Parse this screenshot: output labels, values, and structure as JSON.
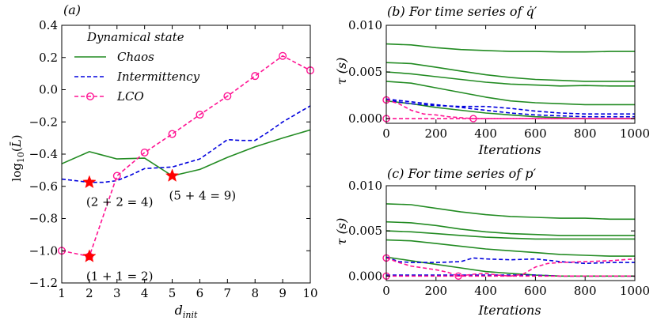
{
  "colors": {
    "chaos": "#228b22",
    "intermittency": "#0000dd",
    "lco": "#ff1493",
    "star": "#ff0000",
    "axis": "#000000"
  },
  "chart_data": [
    {
      "id": "a",
      "type": "line",
      "title": "(a)",
      "xlabel": "d_init",
      "xlabel_main": "d",
      "xlabel_sub": "init",
      "ylabel": "log10(L̄)",
      "xlim": [
        1,
        10
      ],
      "ylim": [
        -1.2,
        0.4
      ],
      "xticks": [
        1,
        2,
        3,
        4,
        5,
        6,
        7,
        8,
        9,
        10
      ],
      "yticks": [
        -1.2,
        -1.0,
        -0.8,
        -0.6,
        -0.4,
        -0.2,
        0.0,
        0.2,
        0.4
      ],
      "ytick_labels": [
        "−1.2",
        "−1.0",
        "−0.8",
        "−0.6",
        "−0.4",
        "−0.2",
        "0.0",
        "0.2",
        "0.4"
      ],
      "legend": {
        "title": "Dynamical state",
        "position": "top-left"
      },
      "series": [
        {
          "name": "Chaos",
          "key": "chaos",
          "style": "solid",
          "x": [
            1,
            2,
            3,
            4,
            5,
            6,
            7,
            8,
            9,
            10
          ],
          "y": [
            -0.46,
            -0.385,
            -0.43,
            -0.425,
            -0.535,
            -0.495,
            -0.42,
            -0.355,
            -0.3,
            -0.25
          ]
        },
        {
          "name": "Intermittency",
          "key": "intermittency",
          "style": "dashed",
          "x": [
            1,
            1.5,
            2,
            2.5,
            3,
            3.5,
            4,
            4.5,
            5,
            5.5,
            6,
            6.5,
            7,
            7.5,
            8,
            8.5,
            9,
            9.5,
            10
          ],
          "y": [
            -0.555,
            -0.565,
            -0.575,
            -0.575,
            -0.565,
            -0.53,
            -0.49,
            -0.485,
            -0.48,
            -0.455,
            -0.43,
            -0.37,
            -0.31,
            -0.315,
            -0.315,
            -0.26,
            -0.2,
            -0.15,
            -0.1
          ]
        },
        {
          "name": "LCO",
          "key": "lco",
          "style": "dashed-circle",
          "x": [
            1,
            2,
            3,
            4,
            5,
            6,
            7,
            8,
            9,
            10
          ],
          "y": [
            -1.0,
            -1.035,
            -0.535,
            -0.39,
            -0.275,
            -0.155,
            -0.04,
            0.085,
            0.21,
            0.12
          ]
        }
      ],
      "stars": [
        {
          "x": 2,
          "y": -1.035,
          "label": "(1 + 1 = 2)"
        },
        {
          "x": 2,
          "y": -0.575,
          "label": "(2 + 2 = 4)"
        },
        {
          "x": 5,
          "y": -0.535,
          "label": "(5 + 4 = 9)"
        }
      ]
    },
    {
      "id": "b",
      "type": "line",
      "title": "(b) For time series of q̇′",
      "xlabel": "Iterations",
      "ylabel": "τ (s)",
      "xlim": [
        0,
        1000
      ],
      "ylim": [
        -0.0005,
        0.01
      ],
      "xticks": [
        0,
        200,
        400,
        600,
        800,
        1000
      ],
      "yticks": [
        0.0,
        0.005,
        0.01
      ],
      "ytick_labels": [
        "0.000",
        "0.005",
        "0.010"
      ],
      "series": [
        {
          "name": "Chaos",
          "key": "chaos",
          "style": "solid",
          "x": [
            0,
            100,
            200,
            300,
            400,
            500,
            600,
            700,
            800,
            900,
            1000
          ],
          "y": [
            0.008,
            0.0079,
            0.0076,
            0.0074,
            0.0073,
            0.0072,
            0.0072,
            0.00715,
            0.00715,
            0.0072,
            0.0072
          ]
        },
        {
          "name": "Chaos",
          "key": "chaos",
          "style": "solid",
          "x": [
            0,
            100,
            200,
            300,
            400,
            500,
            600,
            700,
            800,
            900,
            1000
          ],
          "y": [
            0.006,
            0.0059,
            0.0055,
            0.0051,
            0.0047,
            0.0044,
            0.0042,
            0.0041,
            0.004,
            0.004,
            0.004
          ]
        },
        {
          "name": "Chaos",
          "key": "chaos",
          "style": "solid",
          "x": [
            0,
            100,
            200,
            300,
            400,
            500,
            600,
            700,
            800,
            900,
            1000
          ],
          "y": [
            0.005,
            0.0048,
            0.0045,
            0.0042,
            0.0039,
            0.0037,
            0.0036,
            0.0035,
            0.00355,
            0.0035,
            0.0035
          ]
        },
        {
          "name": "Chaos",
          "key": "chaos",
          "style": "solid",
          "x": [
            0,
            100,
            200,
            300,
            400,
            500,
            600,
            700,
            800,
            900,
            1000
          ],
          "y": [
            0.004,
            0.0038,
            0.0033,
            0.0028,
            0.0023,
            0.0019,
            0.0017,
            0.0016,
            0.0015,
            0.0015,
            0.0015
          ]
        },
        {
          "name": "Chaos",
          "key": "chaos",
          "style": "solid",
          "x": [
            0,
            100,
            200,
            300,
            400,
            500,
            600,
            700,
            800,
            900,
            1000
          ],
          "y": [
            0.0019,
            0.0016,
            0.0012,
            0.0009,
            0.0006,
            0.0004,
            0.0002,
            0.0001,
            0.0,
            0.0,
            0.0
          ]
        },
        {
          "name": "Intermittency",
          "key": "intermittency",
          "style": "dashed",
          "x": [
            0,
            100,
            200,
            300,
            400,
            500,
            600,
            700,
            800,
            900,
            1000
          ],
          "y": [
            0.0021,
            0.0018,
            0.0015,
            0.0012,
            0.0009,
            0.0006,
            0.0004,
            0.0003,
            0.0002,
            0.0002,
            0.0002
          ]
        },
        {
          "name": "Intermittency",
          "key": "intermittency",
          "style": "dashed",
          "x": [
            0,
            100,
            200,
            300,
            400,
            500,
            600,
            700,
            800,
            900,
            1000
          ],
          "y": [
            0.002,
            0.0016,
            0.0014,
            0.0013,
            0.0013,
            0.0011,
            0.0008,
            0.0006,
            0.0005,
            0.0005,
            0.0005
          ]
        },
        {
          "name": "LCO",
          "key": "lco",
          "style": "dashed",
          "x": [
            0,
            50,
            100,
            150,
            200,
            250,
            300,
            350,
            400,
            500,
            600,
            800,
            1000
          ],
          "y": [
            0.002,
            0.0016,
            0.0009,
            0.0005,
            0.0004,
            0.0002,
            0.0001,
            0.0,
            0.0,
            0.0,
            0.0,
            0.0,
            0.0
          ]
        },
        {
          "name": "LCO",
          "key": "lco",
          "style": "dashed",
          "x": [
            0,
            200,
            400,
            600,
            800,
            1000
          ],
          "y": [
            0.0,
            0.0,
            0.0,
            0.0,
            0.0,
            0.0
          ]
        }
      ],
      "markers": [
        {
          "x": 0,
          "y": 0.002
        },
        {
          "x": 0,
          "y": 0.0
        },
        {
          "x": 350,
          "y": 0.0
        }
      ]
    },
    {
      "id": "c",
      "type": "line",
      "title": "(c) For time series of p′",
      "xlabel": "Iterations",
      "ylabel": "τ (s)",
      "xlim": [
        0,
        1000
      ],
      "ylim": [
        -0.0005,
        0.01
      ],
      "xticks": [
        0,
        200,
        400,
        600,
        800,
        1000
      ],
      "yticks": [
        0.0,
        0.005,
        0.01
      ],
      "ytick_labels": [
        "0.000",
        "0.005",
        "0.010"
      ],
      "series": [
        {
          "name": "Chaos",
          "key": "chaos",
          "style": "solid",
          "x": [
            0,
            100,
            200,
            300,
            400,
            500,
            600,
            700,
            800,
            900,
            1000
          ],
          "y": [
            0.008,
            0.0079,
            0.0075,
            0.0071,
            0.0068,
            0.0066,
            0.0065,
            0.0064,
            0.0064,
            0.0063,
            0.0063
          ]
        },
        {
          "name": "Chaos",
          "key": "chaos",
          "style": "solid",
          "x": [
            0,
            100,
            200,
            300,
            400,
            500,
            600,
            700,
            800,
            900,
            1000
          ],
          "y": [
            0.006,
            0.0059,
            0.0056,
            0.0052,
            0.0049,
            0.0047,
            0.0046,
            0.0045,
            0.0045,
            0.0045,
            0.0045
          ]
        },
        {
          "name": "Chaos",
          "key": "chaos",
          "style": "solid",
          "x": [
            0,
            100,
            200,
            300,
            400,
            500,
            600,
            700,
            800,
            900,
            1000
          ],
          "y": [
            0.005,
            0.0049,
            0.0047,
            0.0045,
            0.0043,
            0.0042,
            0.0041,
            0.0041,
            0.0041,
            0.0041,
            0.0041
          ]
        },
        {
          "name": "Chaos",
          "key": "chaos",
          "style": "solid",
          "x": [
            0,
            100,
            200,
            300,
            400,
            500,
            600,
            700,
            800,
            900,
            1000
          ],
          "y": [
            0.004,
            0.0039,
            0.0036,
            0.0033,
            0.003,
            0.0028,
            0.0026,
            0.0024,
            0.0023,
            0.0022,
            0.0022
          ]
        },
        {
          "name": "Chaos",
          "key": "chaos",
          "style": "solid",
          "x": [
            0,
            100,
            200,
            300,
            400,
            500,
            600,
            700,
            800,
            900,
            1000
          ],
          "y": [
            0.0021,
            0.0017,
            0.0013,
            0.0009,
            0.0005,
            0.0003,
            0.0001,
            0.0,
            0.0,
            0.0,
            0.0
          ]
        },
        {
          "name": "Intermittency",
          "key": "intermittency",
          "style": "dashed",
          "x": [
            0,
            50,
            100,
            200,
            300,
            350,
            400,
            500,
            600,
            700,
            800,
            900,
            1000
          ],
          "y": [
            0.0021,
            0.0016,
            0.0015,
            0.0015,
            0.0016,
            0.002,
            0.0019,
            0.0018,
            0.0019,
            0.0016,
            0.0014,
            0.0015,
            0.0015
          ]
        },
        {
          "name": "Intermittency",
          "key": "intermittency",
          "style": "dashed",
          "x": [
            0,
            100,
            200,
            300,
            400,
            500,
            600,
            700,
            800,
            900,
            1000
          ],
          "y": [
            0.0001,
            0.0001,
            0.0001,
            0.0001,
            0.0001,
            0.0001,
            0.0001,
            0.0,
            0.0,
            0.0,
            0.0
          ]
        },
        {
          "name": "LCO",
          "key": "lco",
          "style": "dashed",
          "x": [
            0,
            50,
            100,
            150,
            200,
            250,
            290,
            350,
            400,
            450,
            500,
            550,
            600,
            650,
            700,
            800,
            900,
            1000
          ],
          "y": [
            0.002,
            0.0015,
            0.0011,
            0.0009,
            0.0007,
            0.0004,
            0.0,
            0.0002,
            0.0003,
            0.0001,
            0.0,
            0.0002,
            0.001,
            0.0014,
            0.0015,
            0.0016,
            0.0017,
            0.0019
          ]
        },
        {
          "name": "LCO",
          "key": "lco",
          "style": "dashed",
          "x": [
            0,
            200,
            400,
            600,
            800,
            1000
          ],
          "y": [
            0.0,
            0.0,
            0.0,
            0.0,
            0.0,
            0.0
          ]
        }
      ],
      "markers": [
        {
          "x": 0,
          "y": 0.002
        },
        {
          "x": 0,
          "y": 0.0
        },
        {
          "x": 290,
          "y": 0.0
        }
      ]
    }
  ]
}
